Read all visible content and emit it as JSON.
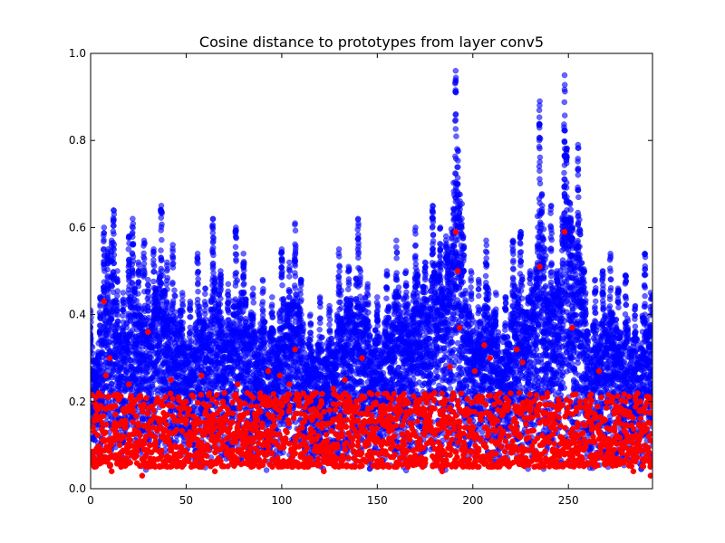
{
  "chart_data": {
    "type": "scatter",
    "title": "Cosine distance to prototypes from layer conv5",
    "xlabel": "",
    "ylabel": "",
    "xlim": [
      0,
      294
    ],
    "ylim": [
      0.0,
      1.0
    ],
    "x_ticks": [
      0,
      50,
      100,
      150,
      200,
      250
    ],
    "y_ticks": [
      0.0,
      0.2,
      0.4,
      0.6,
      0.8,
      1.0
    ],
    "x_tick_labels": [
      "0",
      "50",
      "100",
      "150",
      "200",
      "250"
    ],
    "y_tick_labels": [
      "0.0",
      "0.2",
      "0.4",
      "0.6",
      "0.8",
      "1.0"
    ],
    "grid": false,
    "legend": "none",
    "colors": {
      "blue": "#0000ff",
      "red": "#ff0000"
    },
    "series": [
      {
        "color": "#0000ff",
        "alpha": 0.6,
        "column_max": [
          {
            "x": 0,
            "y": 0.41
          },
          {
            "x": 5,
            "y": 0.44
          },
          {
            "x": 7,
            "y": 0.6
          },
          {
            "x": 9,
            "y": 0.55
          },
          {
            "x": 11,
            "y": 0.57
          },
          {
            "x": 12,
            "y": 0.64
          },
          {
            "x": 14,
            "y": 0.5
          },
          {
            "x": 17,
            "y": 0.45
          },
          {
            "x": 20,
            "y": 0.58
          },
          {
            "x": 22,
            "y": 0.62
          },
          {
            "x": 25,
            "y": 0.52
          },
          {
            "x": 28,
            "y": 0.57
          },
          {
            "x": 30,
            "y": 0.48
          },
          {
            "x": 33,
            "y": 0.55
          },
          {
            "x": 37,
            "y": 0.65
          },
          {
            "x": 40,
            "y": 0.52
          },
          {
            "x": 43,
            "y": 0.56
          },
          {
            "x": 48,
            "y": 0.45
          },
          {
            "x": 52,
            "y": 0.43
          },
          {
            "x": 56,
            "y": 0.54
          },
          {
            "x": 60,
            "y": 0.46
          },
          {
            "x": 64,
            "y": 0.62
          },
          {
            "x": 68,
            "y": 0.5
          },
          {
            "x": 72,
            "y": 0.47
          },
          {
            "x": 76,
            "y": 0.6
          },
          {
            "x": 80,
            "y": 0.54
          },
          {
            "x": 85,
            "y": 0.46
          },
          {
            "x": 90,
            "y": 0.48
          },
          {
            "x": 95,
            "y": 0.44
          },
          {
            "x": 100,
            "y": 0.55
          },
          {
            "x": 104,
            "y": 0.52
          },
          {
            "x": 107,
            "y": 0.61
          },
          {
            "x": 110,
            "y": 0.48
          },
          {
            "x": 115,
            "y": 0.4
          },
          {
            "x": 120,
            "y": 0.44
          },
          {
            "x": 125,
            "y": 0.42
          },
          {
            "x": 130,
            "y": 0.55
          },
          {
            "x": 135,
            "y": 0.51
          },
          {
            "x": 140,
            "y": 0.62
          },
          {
            "x": 145,
            "y": 0.47
          },
          {
            "x": 150,
            "y": 0.44
          },
          {
            "x": 155,
            "y": 0.5
          },
          {
            "x": 160,
            "y": 0.57
          },
          {
            "x": 165,
            "y": 0.5
          },
          {
            "x": 170,
            "y": 0.6
          },
          {
            "x": 175,
            "y": 0.52
          },
          {
            "x": 179,
            "y": 0.65
          },
          {
            "x": 183,
            "y": 0.6
          },
          {
            "x": 186,
            "y": 0.58
          },
          {
            "x": 191,
            "y": 0.96
          },
          {
            "x": 195,
            "y": 0.58
          },
          {
            "x": 199,
            "y": 0.5
          },
          {
            "x": 203,
            "y": 0.48
          },
          {
            "x": 207,
            "y": 0.57
          },
          {
            "x": 212,
            "y": 0.45
          },
          {
            "x": 217,
            "y": 0.44
          },
          {
            "x": 221,
            "y": 0.57
          },
          {
            "x": 225,
            "y": 0.59
          },
          {
            "x": 230,
            "y": 0.5
          },
          {
            "x": 235,
            "y": 0.89
          },
          {
            "x": 238,
            "y": 0.55
          },
          {
            "x": 241,
            "y": 0.65
          },
          {
            "x": 244,
            "y": 0.5
          },
          {
            "x": 248,
            "y": 0.95
          },
          {
            "x": 252,
            "y": 0.6
          },
          {
            "x": 255,
            "y": 0.79
          },
          {
            "x": 259,
            "y": 0.45
          },
          {
            "x": 264,
            "y": 0.48
          },
          {
            "x": 268,
            "y": 0.5
          },
          {
            "x": 272,
            "y": 0.54
          },
          {
            "x": 276,
            "y": 0.46
          },
          {
            "x": 280,
            "y": 0.49
          },
          {
            "x": 285,
            "y": 0.42
          },
          {
            "x": 290,
            "y": 0.54
          },
          {
            "x": 293,
            "y": 0.45
          }
        ],
        "typical_min": 0.04
      },
      {
        "color": "#ff0000",
        "points": [
          {
            "x": 4,
            "y": 0.19
          },
          {
            "x": 6,
            "y": 0.15
          },
          {
            "x": 7,
            "y": 0.43
          },
          {
            "x": 8,
            "y": 0.26
          },
          {
            "x": 10,
            "y": 0.3
          },
          {
            "x": 11,
            "y": 0.04
          },
          {
            "x": 13,
            "y": 0.19
          },
          {
            "x": 18,
            "y": 0.14
          },
          {
            "x": 20,
            "y": 0.24
          },
          {
            "x": 22,
            "y": 0.2
          },
          {
            "x": 27,
            "y": 0.03
          },
          {
            "x": 30,
            "y": 0.36
          },
          {
            "x": 33,
            "y": 0.18
          },
          {
            "x": 36,
            "y": 0.16
          },
          {
            "x": 42,
            "y": 0.25
          },
          {
            "x": 46,
            "y": 0.21
          },
          {
            "x": 50,
            "y": 0.2
          },
          {
            "x": 58,
            "y": 0.26
          },
          {
            "x": 61,
            "y": 0.1
          },
          {
            "x": 65,
            "y": 0.04
          },
          {
            "x": 70,
            "y": 0.22
          },
          {
            "x": 77,
            "y": 0.24
          },
          {
            "x": 82,
            "y": 0.22
          },
          {
            "x": 88,
            "y": 0.18
          },
          {
            "x": 93,
            "y": 0.27
          },
          {
            "x": 99,
            "y": 0.26
          },
          {
            "x": 104,
            "y": 0.24
          },
          {
            "x": 107,
            "y": 0.32
          },
          {
            "x": 112,
            "y": 0.17
          },
          {
            "x": 118,
            "y": 0.22
          },
          {
            "x": 122,
            "y": 0.04
          },
          {
            "x": 127,
            "y": 0.23
          },
          {
            "x": 133,
            "y": 0.25
          },
          {
            "x": 137,
            "y": 0.1
          },
          {
            "x": 142,
            "y": 0.3
          },
          {
            "x": 146,
            "y": 0.22
          },
          {
            "x": 151,
            "y": 0.16
          },
          {
            "x": 156,
            "y": 0.21
          },
          {
            "x": 161,
            "y": 0.17
          },
          {
            "x": 166,
            "y": 0.05
          },
          {
            "x": 171,
            "y": 0.19
          },
          {
            "x": 175,
            "y": 0.14
          },
          {
            "x": 180,
            "y": 0.22
          },
          {
            "x": 184,
            "y": 0.04
          },
          {
            "x": 188,
            "y": 0.28
          },
          {
            "x": 191,
            "y": 0.59
          },
          {
            "x": 192,
            "y": 0.5
          },
          {
            "x": 193,
            "y": 0.37
          },
          {
            "x": 196,
            "y": 0.18
          },
          {
            "x": 201,
            "y": 0.27
          },
          {
            "x": 206,
            "y": 0.33
          },
          {
            "x": 209,
            "y": 0.3
          },
          {
            "x": 212,
            "y": 0.21
          },
          {
            "x": 218,
            "y": 0.18
          },
          {
            "x": 223,
            "y": 0.32
          },
          {
            "x": 226,
            "y": 0.29
          },
          {
            "x": 230,
            "y": 0.18
          },
          {
            "x": 235,
            "y": 0.51
          },
          {
            "x": 239,
            "y": 0.11
          },
          {
            "x": 243,
            "y": 0.15
          },
          {
            "x": 248,
            "y": 0.59
          },
          {
            "x": 252,
            "y": 0.37
          },
          {
            "x": 256,
            "y": 0.2
          },
          {
            "x": 262,
            "y": 0.15
          },
          {
            "x": 266,
            "y": 0.27
          },
          {
            "x": 271,
            "y": 0.1
          },
          {
            "x": 275,
            "y": 0.19
          },
          {
            "x": 280,
            "y": 0.2
          },
          {
            "x": 284,
            "y": 0.04
          },
          {
            "x": 288,
            "y": 0.14
          },
          {
            "x": 293,
            "y": 0.03
          }
        ],
        "typical_min": 0.05
      }
    ]
  }
}
